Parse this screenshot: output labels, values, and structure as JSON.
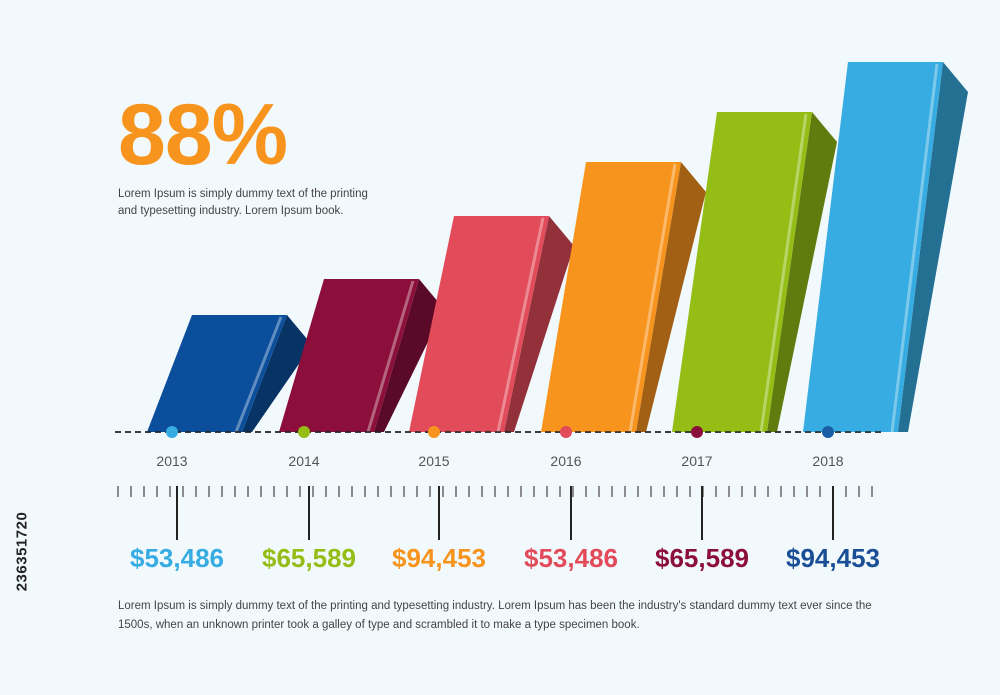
{
  "headline": {
    "percent": "88%",
    "description": "Lorem Ipsum is simply dummy text of the printing and typesetting industry. Lorem Ipsum book."
  },
  "footer": {
    "text": "Lorem Ipsum is simply dummy text of the printing and typesetting industry. Lorem Ipsum has been the industry's standard dummy text ever since the 1500s, when an unknown printer took a galley of type and scrambled it to make a type specimen book."
  },
  "side_id": "236351720",
  "chart_data": {
    "type": "bar",
    "title": "",
    "xlabel": "",
    "ylabel": "",
    "categories": [
      "2013",
      "2014",
      "2015",
      "2016",
      "2017",
      "2018"
    ],
    "values": [
      117,
      153,
      216,
      270,
      320,
      370
    ],
    "ylim": [
      0,
      370
    ],
    "grid": false,
    "bar_colors": [
      "#0b4f9c",
      "#8b0f3a",
      "#e24b5a",
      "#f7941d",
      "#94bd15",
      "#36ace2"
    ],
    "dot_colors": [
      "#36ace2",
      "#94bd15",
      "#f7941d",
      "#e24b5a",
      "#8b0f3a",
      "#1a5ea8"
    ],
    "value_labels": [
      "$53,486",
      "$65,589",
      "$94,453",
      "$53,486",
      "$65,589",
      "$94,453"
    ],
    "value_label_colors": [
      "#36ace2",
      "#94bd15",
      "#f7941d",
      "#e24b5a",
      "#8b0f3a",
      "#1a4f96"
    ]
  }
}
